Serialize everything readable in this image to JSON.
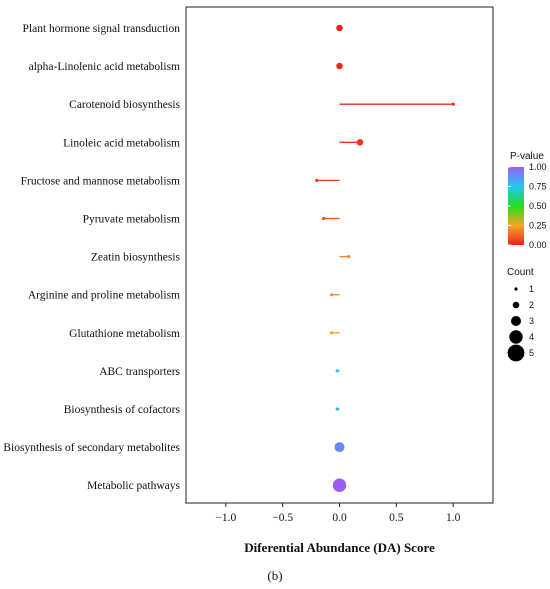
{
  "chart_data": {
    "type": "scatter",
    "subtype": "lollipop",
    "xlabel": "Diferential Abundance (DA) Score",
    "xlim": [
      -1.35,
      1.35
    ],
    "x_ticks": [
      -1.0,
      -0.5,
      0.0,
      0.5,
      1.0
    ],
    "x_tick_labels": [
      "−1.0",
      "−0.5",
      "0.0",
      "0.5",
      "1.0"
    ],
    "grid": false,
    "legend_position": "right",
    "points": [
      {
        "pathway": "Plant hormone signal transduction",
        "da_score": 0.0,
        "count": 2,
        "pvalue": 0.01
      },
      {
        "pathway": "alpha-Linolenic acid metabolism",
        "da_score": 0.0,
        "count": 2,
        "pvalue": 0.02
      },
      {
        "pathway": "Carotenoid biosynthesis",
        "da_score": 1.0,
        "count": 1,
        "pvalue": 0.02
      },
      {
        "pathway": "Linoleic acid metabolism",
        "da_score": 0.18,
        "count": 2,
        "pvalue": 0.03
      },
      {
        "pathway": "Fructose and mannose metabolism",
        "da_score": -0.2,
        "count": 1,
        "pvalue": 0.05
      },
      {
        "pathway": "Pyruvate metabolism",
        "da_score": -0.14,
        "count": 1,
        "pvalue": 0.1
      },
      {
        "pathway": "Zeatin biosynthesis",
        "da_score": 0.08,
        "count": 1,
        "pvalue": 0.2
      },
      {
        "pathway": "Arginine and proline metabolism",
        "da_score": -0.07,
        "count": 1,
        "pvalue": 0.22
      },
      {
        "pathway": "Glutathione metabolism",
        "da_score": -0.07,
        "count": 1,
        "pvalue": 0.25
      },
      {
        "pathway": "ABC transporters",
        "da_score": -0.02,
        "count": 1,
        "pvalue": 0.75
      },
      {
        "pathway": "Biosynthesis of cofactors",
        "da_score": -0.02,
        "count": 1,
        "pvalue": 0.8
      },
      {
        "pathway": "Biosynthesis of secondary metabolites",
        "da_score": 0.0,
        "count": 3,
        "pvalue": 0.9
      },
      {
        "pathway": "Metabolic pathways",
        "da_score": 0.0,
        "count": 4,
        "pvalue": 1.0
      }
    ],
    "color_legend": {
      "title": "P-value",
      "ticks": [
        1.0,
        0.75,
        0.5,
        0.25,
        0.0
      ],
      "tick_labels": [
        "1.00",
        "0.75",
        "0.50",
        "0.25",
        "0.00"
      ],
      "colors": [
        "#9B5CF5",
        "#22C8F5",
        "#22DD22",
        "#F5A623",
        "#E8241C"
      ]
    },
    "size_legend": {
      "title": "Count",
      "values": [
        1,
        2,
        3,
        4,
        5
      ],
      "labels": [
        "1",
        "2",
        "3",
        "4",
        "5"
      ]
    }
  },
  "panel_label": "(b)"
}
